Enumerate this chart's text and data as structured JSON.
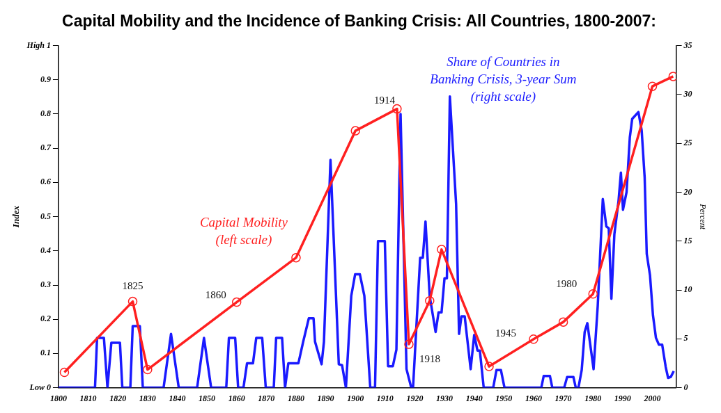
{
  "chart_data": {
    "type": "line",
    "title": "Capital Mobility and the Incidence of Banking Crisis: All Countries, 1800-2007:",
    "ylabel": "Index",
    "y2label": "Percent",
    "xlim": [
      1800,
      2008
    ],
    "xticks": [
      1800,
      1810,
      1820,
      1830,
      1840,
      1850,
      1860,
      1870,
      1880,
      1890,
      1900,
      1910,
      1920,
      1930,
      1940,
      1950,
      1960,
      1970,
      1980,
      1990,
      2000
    ],
    "ylim": [
      0,
      1
    ],
    "yticks": [
      {
        "value": 0,
        "label": "Low 0"
      },
      0.1,
      0.2,
      0.3,
      0.4,
      0.5,
      0.6,
      0.7,
      0.8,
      0.9,
      {
        "value": 1,
        "label": "High 1"
      }
    ],
    "y2lim": [
      0,
      35
    ],
    "y2ticks": [
      0,
      5,
      10,
      15,
      20,
      25,
      30,
      35
    ],
    "grid": false,
    "legend": false,
    "series": [
      {
        "name": "Capital Mobility (left scale)",
        "color": "#ff2020",
        "marker": "circle",
        "x": [
          1802,
          1825,
          1830,
          1860,
          1880,
          1900,
          1914,
          1918,
          1925,
          1929,
          1945,
          1960,
          1970,
          1980,
          2000,
          2007
        ],
        "values": [
          0.045,
          0.252,
          0.053,
          0.25,
          0.38,
          0.751,
          0.815,
          0.127,
          0.254,
          0.404,
          0.062,
          0.142,
          0.192,
          0.274,
          0.881,
          0.91
        ]
      },
      {
        "name": "Share of Countries in Banking Crisis, 3-year Sum (right scale)",
        "color": "#1a1aff",
        "marker": "none",
        "axis": "y2",
        "x": [
          1800,
          1812.3,
          1813,
          1815.3,
          1816.5,
          1817.8,
          1820.7,
          1821.5,
          1824.2,
          1825,
          1827.4,
          1828.4,
          1835.4,
          1837.9,
          1840.5,
          1846.7,
          1849,
          1851.4,
          1856.5,
          1857.4,
          1859.5,
          1860.5,
          1862.3,
          1863.5,
          1865.5,
          1866.6,
          1868.6,
          1869.8,
          1872.5,
          1873.3,
          1875.3,
          1876.3,
          1877.4,
          1880.8,
          1882.4,
          1884.3,
          1885.9,
          1886.4,
          1888.6,
          1889.4,
          1891.6,
          1894.4,
          1895.5,
          1896.8,
          1898.6,
          1899.9,
          1901.5,
          1903,
          1905,
          1906.6,
          1907.6,
          1909.9,
          1911,
          1912.6,
          1913.8,
          1915.2,
          1917.2,
          1918.8,
          1919.4,
          1921.8,
          1922.7,
          1923.6,
          1925,
          1927,
          1928,
          1929,
          1930,
          1930.8,
          1931.8,
          1933.9,
          1934.9,
          1935.7,
          1936.8,
          1938.8,
          1940,
          1941.1,
          1941.9,
          1943.2,
          1946.4,
          1947.5,
          1949,
          1950.2,
          1962.6,
          1963.4,
          1965.5,
          1966.3,
          1970.3,
          1971.3,
          1973.4,
          1974.2,
          1975.1,
          1976.2,
          1977.2,
          1978.1,
          1980.2,
          1981.6,
          1983.3,
          1984.5,
          1985.3,
          1986.2,
          1987.2,
          1988.6,
          1989.4,
          1990.1,
          1991.3,
          1992.4,
          1993.2,
          1995.3,
          1996.4,
          1997.4,
          1998.1,
          1999.2,
          2000.2,
          2001.2,
          2002.2,
          2003.3,
          2004.5,
          2005.3,
          2006.2,
          2007.2
        ],
        "values": [
          0,
          0,
          5.1,
          5.1,
          0,
          4.6,
          4.6,
          0,
          0,
          6.3,
          6.3,
          0,
          0,
          5.5,
          0,
          0,
          5.1,
          0,
          0,
          5.1,
          5.1,
          0,
          0,
          2.5,
          2.5,
          5.1,
          5.1,
          0,
          0,
          5.1,
          5.1,
          0,
          2.5,
          2.5,
          4.7,
          7.1,
          7.1,
          4.7,
          2.4,
          4.7,
          23.3,
          2.4,
          2.3,
          0,
          9.4,
          11.6,
          11.6,
          9.4,
          0,
          0,
          15,
          15,
          2.2,
          2.2,
          3.9,
          28,
          1.9,
          0,
          0,
          13.3,
          13.3,
          17,
          9.4,
          5.7,
          7.7,
          7.7,
          11.2,
          11.2,
          29.8,
          18.8,
          5.5,
          7.3,
          7.3,
          1.9,
          5.4,
          3.8,
          3.8,
          0,
          0,
          1.8,
          1.8,
          0,
          0,
          1.2,
          1.2,
          0,
          0,
          1.1,
          1.1,
          0,
          0,
          1.8,
          5.7,
          6.6,
          1.9,
          8.4,
          19.3,
          16.5,
          16.3,
          9.1,
          15.7,
          19.1,
          22,
          18.2,
          20,
          25.6,
          27.5,
          28.2,
          26.3,
          21.5,
          13.7,
          11.5,
          7.4,
          5.1,
          4.4,
          4.4,
          2.1,
          1,
          1.1,
          1.7
        ]
      }
    ],
    "annotations": [
      {
        "text": "1825",
        "x": 1825,
        "y": 0.252
      },
      {
        "text": "1860",
        "x": 1860,
        "y": 0.25
      },
      {
        "text": "1914",
        "x": 1914,
        "y": 0.815
      },
      {
        "text": "1918",
        "x": 1918,
        "y": 0.127
      },
      {
        "text": "1945",
        "x": 1960,
        "y": 0.142
      },
      {
        "text": "1980",
        "x": 1980,
        "y": 0.274
      }
    ]
  }
}
